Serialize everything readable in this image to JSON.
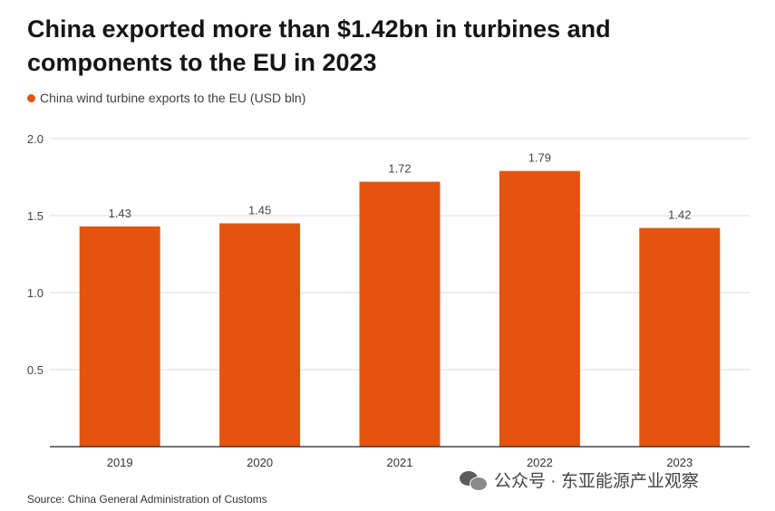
{
  "chart_data": {
    "type": "bar",
    "title": "China exported more than $1.42bn in turbines and components to the EU in 2023",
    "legend": "China wind turbine exports to the EU (USD bln)",
    "categories": [
      "2019",
      "2020",
      "2021",
      "2022",
      "2023"
    ],
    "values": [
      1.43,
      1.45,
      1.72,
      1.79,
      1.42
    ],
    "value_labels": [
      "1.43",
      "1.45",
      "1.72",
      "1.79",
      "1.42"
    ],
    "yticks": [
      "0.5",
      "1.0",
      "1.5",
      "2.0"
    ],
    "ytick_values": [
      0.5,
      1.0,
      1.5,
      2.0
    ],
    "ylim": [
      0,
      2.0
    ],
    "xlabel": "",
    "ylabel": "",
    "grid": true,
    "bar_color": "#e4540f",
    "grid_color": "#dddddd",
    "axis_color": "#222222"
  },
  "source": "Source: China General Administration of Customs",
  "watermark": "公众号 · 东亚能源产业观察"
}
